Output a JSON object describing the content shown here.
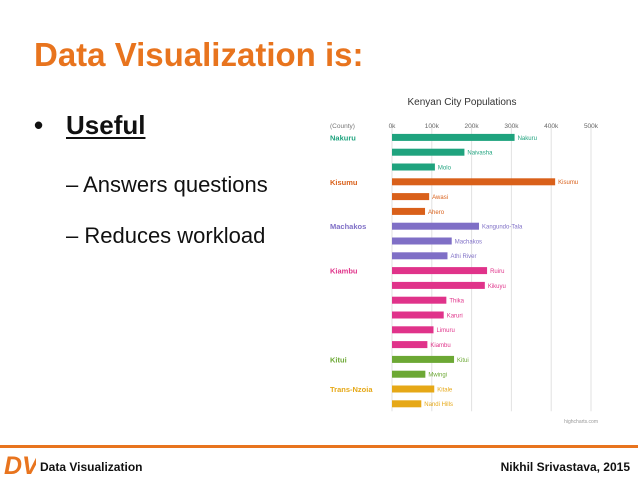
{
  "slide": {
    "title": "Data Visualization is:",
    "bullet_marker": "•",
    "bullet": "Useful",
    "subpoints": [
      "– Answers questions",
      "– Reduces workload"
    ]
  },
  "footer": {
    "logo_text": "DV",
    "left_text": "Data Visualization",
    "right_text": "Nikhil Srivastava, 2015"
  },
  "chart_data": {
    "type": "bar",
    "orientation": "horizontal",
    "title": "Kenyan City Populations",
    "xlabel": "",
    "ylabel": "",
    "group_header": "(County)",
    "xlim": [
      0,
      500000
    ],
    "x_ticks": [
      0,
      100000,
      200000,
      300000,
      400000,
      500000
    ],
    "x_tick_labels": [
      "0k",
      "100k",
      "200k",
      "300k",
      "400k",
      "500k"
    ],
    "grid": true,
    "credit": "highcharts.com",
    "groups": [
      {
        "county": "Nakuru",
        "color": "#1fa37e",
        "cities": [
          {
            "name": "Nakuru",
            "value": 307990
          },
          {
            "name": "Naivasha",
            "value": 181966
          },
          {
            "name": "Molo",
            "value": 107806
          }
        ]
      },
      {
        "name_note": "",
        "county": "Kisumu",
        "color": "#d9601a",
        "cities": [
          {
            "name": "Kisumu",
            "value": 409928
          },
          {
            "name": "Awasi",
            "value": 93369
          },
          {
            "name": "Ahero",
            "value": 83000
          }
        ]
      },
      {
        "county": "Machakos",
        "color": "#7f6fc6",
        "cities": [
          {
            "name": "Kangundo-Tala",
            "value": 218557
          },
          {
            "name": "Machakos",
            "value": 150041
          },
          {
            "name": "Athi River",
            "value": 139380
          }
        ]
      },
      {
        "county": "Kiambu",
        "color": "#e0338a",
        "cities": [
          {
            "name": "Ruiru",
            "value": 238858
          },
          {
            "name": "Kikuyu",
            "value": 233231
          },
          {
            "name": "Thika",
            "value": 136576
          },
          {
            "name": "Karuri",
            "value": 129934
          },
          {
            "name": "Limuru",
            "value": 104282
          },
          {
            "name": "Kiambu",
            "value": 88869
          }
        ]
      },
      {
        "county": "Kitui",
        "color": "#6ca834",
        "cities": [
          {
            "name": "Kitui",
            "value": 155896
          },
          {
            "name": "Mwingi",
            "value": 83803
          }
        ]
      },
      {
        "county": "Trans-Nzoia",
        "color": "#e6a817",
        "cities": [
          {
            "name": "Kitale",
            "value": 106187
          },
          {
            "name": "Nandi Hills",
            "value": 73626
          }
        ]
      }
    ]
  }
}
